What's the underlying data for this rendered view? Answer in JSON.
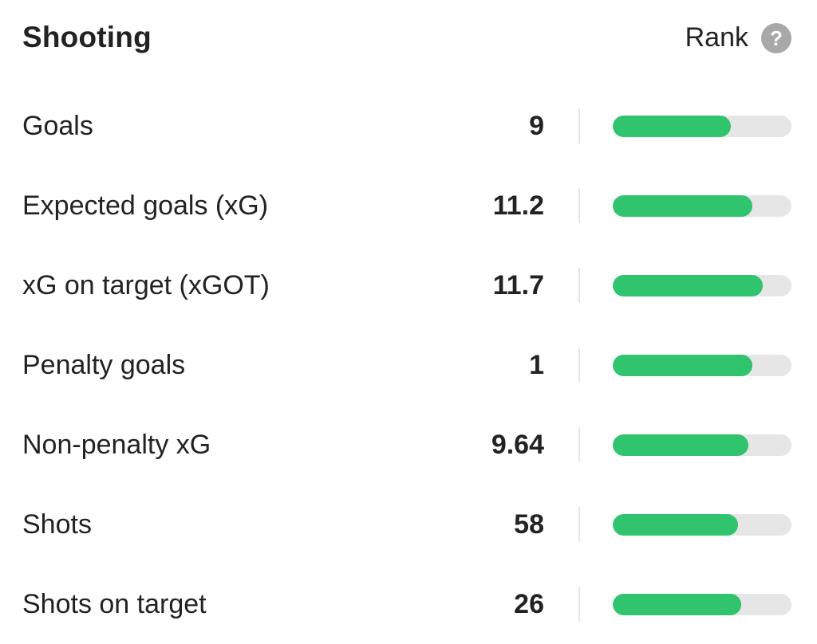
{
  "header": {
    "title": "Shooting",
    "rank_label": "Rank",
    "help_icon": "question-circle-icon",
    "help_glyph": "?"
  },
  "colors": {
    "bar_fill": "#2fc46d",
    "bar_track": "#e6e6e6",
    "help_icon": "#a8a8a8"
  },
  "stats": [
    {
      "label": "Goals",
      "value": "9",
      "rank_fraction": 0.66
    },
    {
      "label": "Expected goals (xG)",
      "value": "11.2",
      "rank_fraction": 0.78
    },
    {
      "label": "xG on target (xGOT)",
      "value": "11.7",
      "rank_fraction": 0.84
    },
    {
      "label": "Penalty goals",
      "value": "1",
      "rank_fraction": 0.78
    },
    {
      "label": "Non-penalty xG",
      "value": "9.64",
      "rank_fraction": 0.76
    },
    {
      "label": "Shots",
      "value": "58",
      "rank_fraction": 0.7
    },
    {
      "label": "Shots on target",
      "value": "26",
      "rank_fraction": 0.72
    }
  ]
}
